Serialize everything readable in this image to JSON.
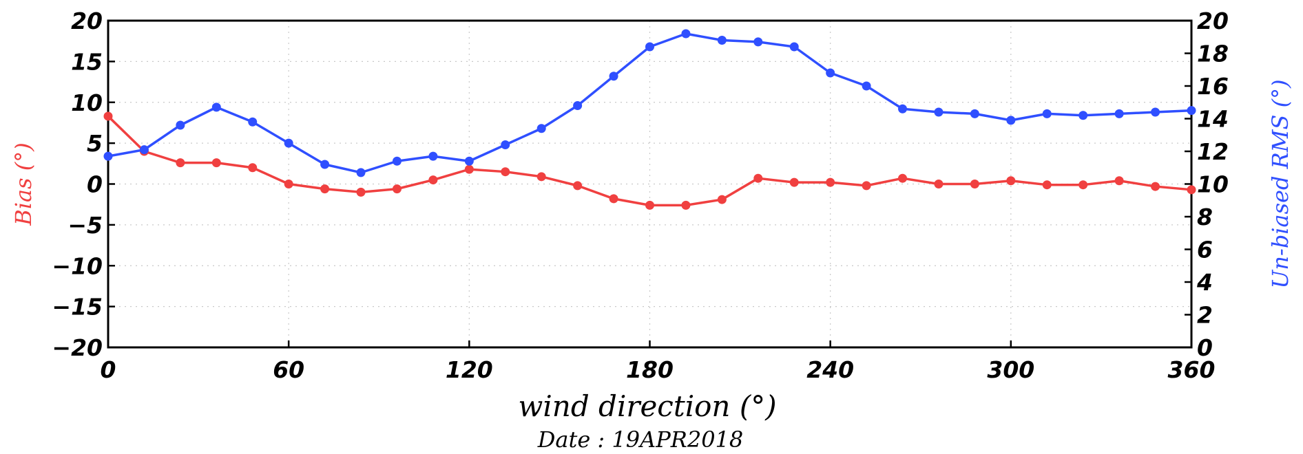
{
  "chart_data": {
    "type": "line",
    "x_axis": {
      "label": "wind direction (°)",
      "range": [
        0,
        360
      ],
      "ticks": [
        "0",
        "60",
        "120",
        "180",
        "240",
        "300",
        "360"
      ],
      "tick_values": [
        0,
        60,
        120,
        180,
        240,
        300,
        360
      ]
    },
    "y_axis_left": {
      "label": "Bias (°)",
      "range": [
        -20,
        20
      ],
      "ticks": [
        "20",
        "15",
        "10",
        "5",
        "0",
        "−5",
        "−10",
        "−15",
        "−20"
      ],
      "tick_values": [
        20,
        15,
        10,
        5,
        0,
        -5,
        -10,
        -15,
        -20
      ],
      "color": "#f04040"
    },
    "y_axis_right": {
      "label": "Un-biased RMS (°)",
      "range": [
        0,
        20
      ],
      "ticks": [
        "20",
        "18",
        "16",
        "14",
        "12",
        "10",
        "8",
        "6",
        "4",
        "2",
        "0"
      ],
      "tick_values": [
        20,
        18,
        16,
        14,
        12,
        10,
        8,
        6,
        4,
        2,
        0
      ],
      "color": "#2f4fff"
    },
    "grid": true,
    "x": [
      0,
      12,
      24,
      36,
      48,
      60,
      72,
      84,
      96,
      108,
      120,
      132,
      144,
      156,
      168,
      180,
      192,
      204,
      216,
      228,
      240,
      252,
      264,
      276,
      288,
      300,
      312,
      324,
      336,
      348,
      360
    ],
    "series": [
      {
        "axis": "left",
        "color": "#f04040",
        "values": [
          8.3,
          4.0,
          2.6,
          2.6,
          2.0,
          0.0,
          -0.6,
          -1.0,
          -0.6,
          0.5,
          1.8,
          1.5,
          0.9,
          -0.2,
          -1.8,
          -2.6,
          -2.6,
          -1.9,
          0.7,
          0.2,
          0.2,
          -0.2,
          0.7,
          0.0,
          0.0,
          0.4,
          -0.1,
          -0.1,
          0.4,
          -0.3,
          -0.7
        ]
      },
      {
        "axis": "right",
        "color": "#2f4fff",
        "values": [
          11.7,
          12.1,
          13.6,
          14.7,
          13.8,
          12.5,
          11.2,
          10.7,
          11.4,
          11.7,
          11.4,
          12.4,
          13.4,
          14.8,
          16.6,
          18.4,
          19.2,
          18.8,
          18.7,
          18.4,
          16.8,
          16.0,
          14.6,
          14.4,
          14.3,
          13.9,
          14.3,
          14.2,
          14.3,
          14.4,
          14.5
        ]
      }
    ],
    "footer": "Date : 19APR2018"
  }
}
